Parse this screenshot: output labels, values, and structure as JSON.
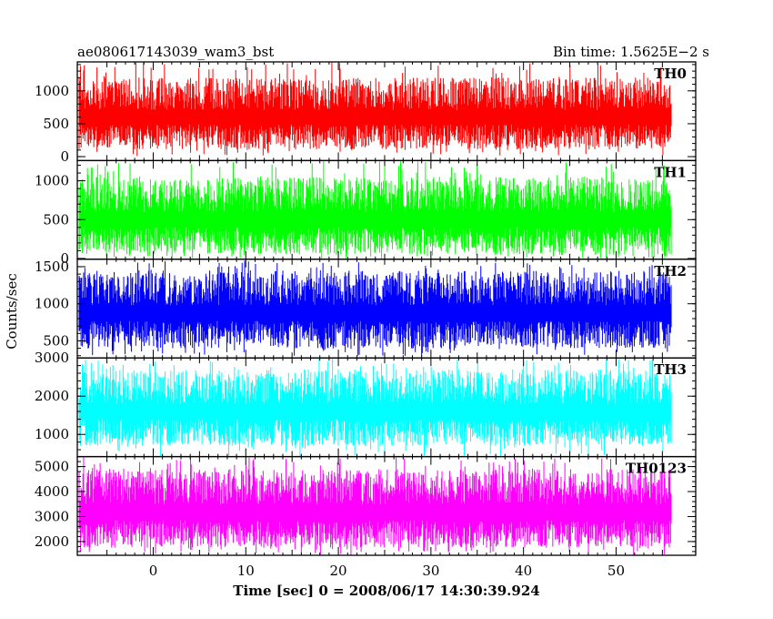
{
  "chart_data": {
    "type": "line",
    "title_left": "ae080617143039_wam3_bst",
    "title_right": "Bin time: 1.5625E−2 s",
    "xlabel": "Time [sec] 0 = 2008/06/17 14:30:39.924",
    "ylabel": "Counts/sec",
    "xlim": [
      -8.2,
      58.6
    ],
    "x_range": [
      -8,
      56
    ],
    "x_ticks": [
      0,
      10,
      20,
      30,
      40,
      50
    ],
    "x_tick_labels": [
      "0",
      "10",
      "20",
      "30",
      "40",
      "50"
    ],
    "grid": false,
    "panels": [
      {
        "name": "TH0",
        "color": "#ff0000",
        "ylim": [
          -60,
          1440
        ],
        "y_ticks": [
          0,
          500,
          1000
        ],
        "y_tick_labels": [
          "0",
          "500",
          "1000"
        ],
        "typical_range": [
          110,
          1200
        ],
        "mean": 600,
        "min": 10,
        "max": 1440
      },
      {
        "name": "TH1",
        "color": "#00ff00",
        "ylim": [
          -10,
          1260
        ],
        "y_ticks": [
          0,
          500,
          1000
        ],
        "y_tick_labels": [
          "0",
          "500",
          "1000"
        ],
        "typical_range": [
          50,
          1050
        ],
        "mean": 550,
        "min": 0,
        "max": 1260
      },
      {
        "name": "TH2",
        "color": "#0000ff",
        "ylim": [
          270,
          1600
        ],
        "y_ticks": [
          500,
          1000,
          1500
        ],
        "y_tick_labels": [
          "500",
          "1000",
          "1500"
        ],
        "typical_range": [
          400,
          1450
        ],
        "mean": 820,
        "min": 290,
        "max": 1600
      },
      {
        "name": "TH3",
        "color": "#00ffff",
        "ylim": [
          420,
          3000
        ],
        "y_ticks": [
          1000,
          2000,
          3000
        ],
        "y_tick_labels": [
          "1000",
          "2000",
          "3000"
        ],
        "typical_range": [
          700,
          2700
        ],
        "mean": 1550,
        "min": 420,
        "max": 3000
      },
      {
        "name": "TH0123",
        "color": "#ff00ff",
        "ylim": [
          1450,
          5400
        ],
        "y_ticks": [
          2000,
          3000,
          4000,
          5000
        ],
        "y_tick_labels": [
          "2000",
          "3000",
          "4000",
          "5000"
        ],
        "typical_range": [
          1750,
          4900
        ],
        "mean": 3250,
        "min": 1450,
        "max": 5400
      }
    ]
  }
}
